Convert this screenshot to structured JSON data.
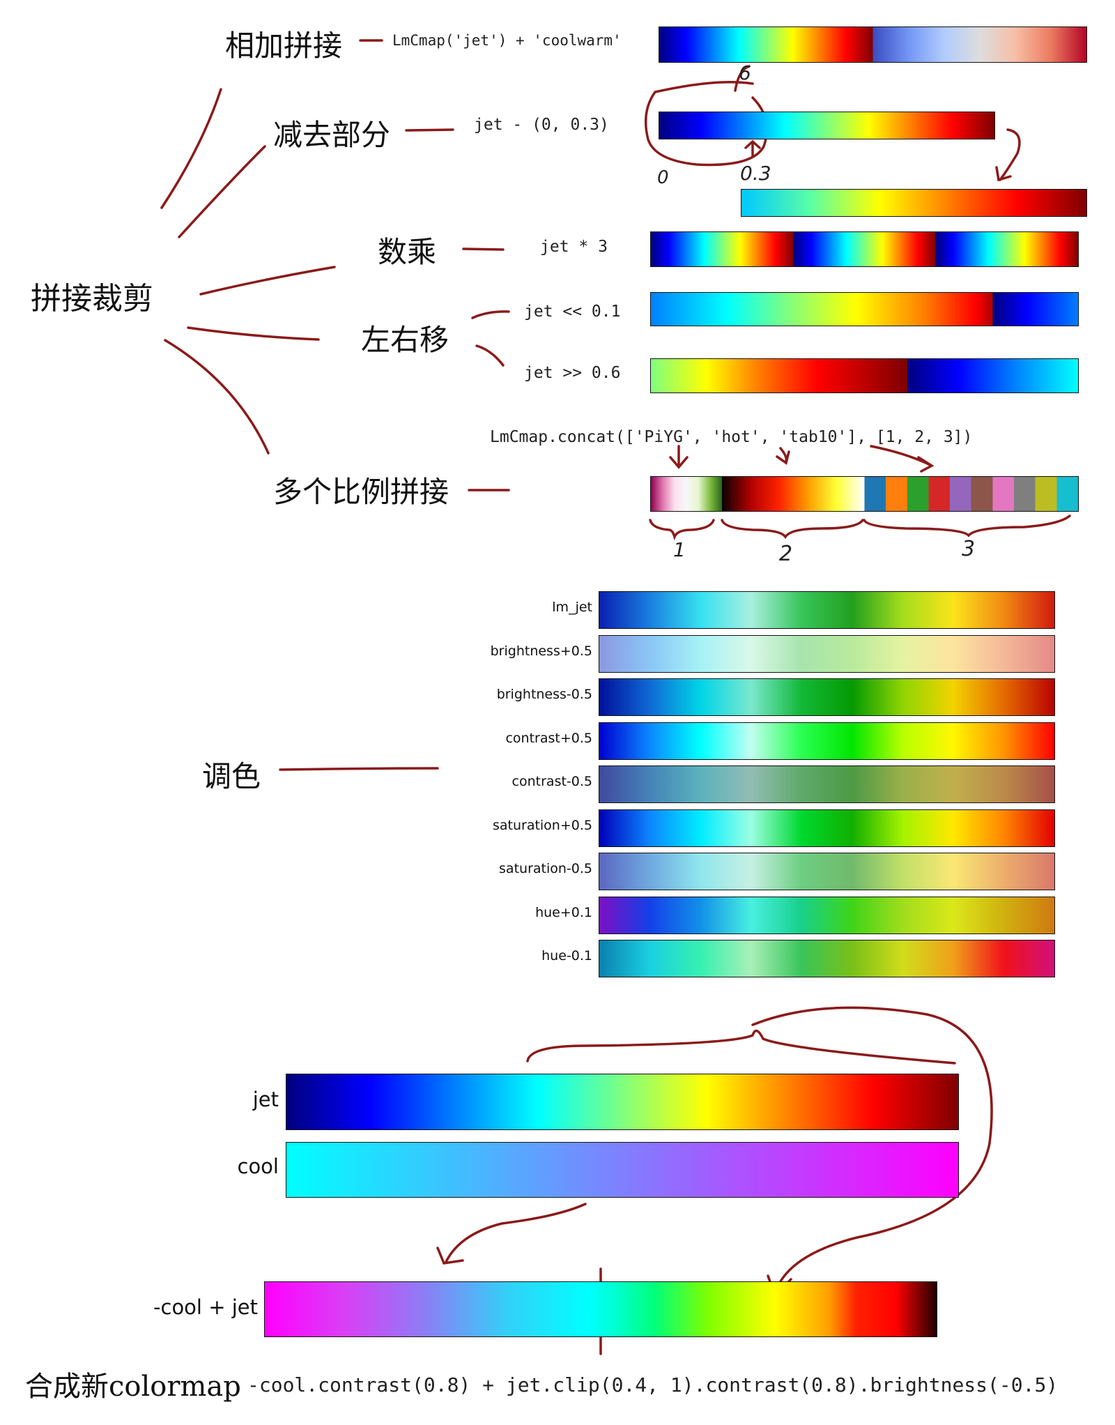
{
  "mindmap": {
    "root": "拼接裁剪",
    "add": "相加拼接",
    "subtract": "减去部分",
    "multiply": "数乘",
    "shift": "左右移",
    "multi_concat": "多个比例拼接",
    "adjust": "调色",
    "compose": "合成新colormap"
  },
  "code": {
    "add": "LmCmap('jet') + 'coolwarm'",
    "subtract": "jet - (0, 0.3)",
    "multiply": "jet * 3",
    "shift_left": "jet << 0.1",
    "shift_right": "jet >> 0.6",
    "concat": "LmCmap.concat(['PiYG', 'hot', 'tab10'], [1, 2, 3])",
    "compose": "-cool.contrast(0.8) + jet.clip(0.4, 1).contrast(0.8).brightness(-0.5)"
  },
  "annotations": {
    "sub_start": "0",
    "sub_end": "0.3",
    "ratio1": "1",
    "ratio2": "2",
    "ratio3": "3",
    "six": "6"
  },
  "adjust_labels": [
    "lm_jet",
    "brightness+0.5",
    "brightness-0.5",
    "contrast+0.5",
    "contrast-0.5",
    "saturation+0.5",
    "saturation-0.5",
    "hue+0.1",
    "hue-0.1"
  ],
  "bottom_labels": {
    "jet": "jet",
    "cool": "cool",
    "result": "-cool + jet"
  },
  "colors": {
    "annotation": "#8b1a1a",
    "jet": [
      "#00007f",
      "#0000ff",
      "#007fff",
      "#00ffff",
      "#7fff7f",
      "#ffff00",
      "#ff7f00",
      "#ff0000",
      "#7f0000"
    ],
    "coolwarm": [
      "#3b4cc0",
      "#7396f5",
      "#b0cbfc",
      "#dddddd",
      "#f6bfa6",
      "#ea7b60",
      "#b40426"
    ],
    "cool": [
      "#00ffff",
      "#ff00ff"
    ],
    "piyg": [
      "#8e0152",
      "#de77ae",
      "#fde0ef",
      "#f7f7f7",
      "#e6f5d0",
      "#7fbc41",
      "#276419"
    ],
    "hot": [
      "#0b0000",
      "#b00000",
      "#ff2200",
      "#ff9a00",
      "#ffff33",
      "#ffffff"
    ],
    "tab10": [
      "#1f77b4",
      "#ff7f0e",
      "#2ca02c",
      "#d62728",
      "#9467bd",
      "#8c564b",
      "#e377c2",
      "#7f7f7f",
      "#bcbd22",
      "#17becf"
    ]
  }
}
